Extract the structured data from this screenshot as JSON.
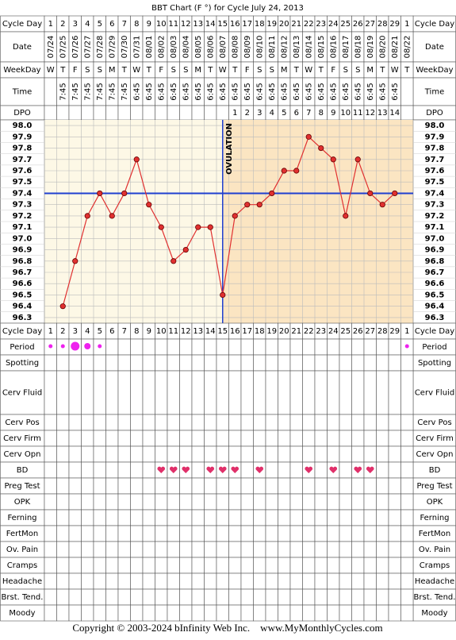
{
  "title": "BBT Chart (F °) for Cycle July 24, 2013",
  "labels": {
    "cycle_day": "Cycle Day",
    "date": "Date",
    "weekday": "WeekDay",
    "time": "Time",
    "dpo": "DPO"
  },
  "cycle_days": [
    "1",
    "2",
    "3",
    "4",
    "5",
    "6",
    "7",
    "8",
    "9",
    "10",
    "11",
    "12",
    "13",
    "14",
    "15",
    "16",
    "17",
    "18",
    "19",
    "20",
    "21",
    "22",
    "23",
    "24",
    "25",
    "26",
    "27",
    "28",
    "29",
    "1"
  ],
  "dates": [
    "07/24",
    "07/25",
    "07/26",
    "07/27",
    "07/28",
    "07/29",
    "07/30",
    "07/31",
    "08/01",
    "08/02",
    "08/03",
    "08/04",
    "08/05",
    "08/06",
    "08/07",
    "08/08",
    "08/09",
    "08/10",
    "08/11",
    "08/12",
    "08/13",
    "08/14",
    "08/15",
    "08/16",
    "08/17",
    "08/18",
    "08/19",
    "08/20",
    "08/21",
    "08/22"
  ],
  "weekdays": [
    "W",
    "T",
    "F",
    "S",
    "S",
    "M",
    "T",
    "W",
    "T",
    "F",
    "S",
    "S",
    "M",
    "T",
    "W",
    "T",
    "F",
    "S",
    "S",
    "M",
    "T",
    "W",
    "T",
    "F",
    "S",
    "S",
    "M",
    "T",
    "W",
    "T"
  ],
  "times": [
    null,
    "7:45",
    "7:45",
    "7:45",
    "7:45",
    "7:45",
    "7:45",
    "6:45",
    "6:45",
    "6:45",
    "6:45",
    "6:45",
    "6:45",
    "6:45",
    "6:45",
    "6:45",
    "6:45",
    "6:45",
    "6:45",
    "6:45",
    "6:45",
    "6:45",
    "6:45",
    "6:45",
    "6:45",
    "6:45",
    "6:45",
    "6:45",
    "6:45",
    null
  ],
  "dpo": [
    null,
    null,
    null,
    null,
    null,
    null,
    null,
    null,
    null,
    null,
    null,
    null,
    null,
    null,
    null,
    "1",
    "2",
    "3",
    "4",
    "5",
    "6",
    "7",
    "8",
    "9",
    "10",
    "11",
    "12",
    "13",
    "14",
    null
  ],
  "chart_data": {
    "type": "line",
    "values": [
      null,
      96.4,
      96.8,
      97.2,
      97.4,
      97.2,
      97.4,
      97.7,
      97.3,
      97.1,
      96.8,
      96.9,
      97.1,
      97.1,
      96.5,
      97.2,
      97.3,
      97.3,
      97.4,
      97.6,
      97.6,
      97.9,
      97.8,
      97.7,
      97.2,
      97.7,
      97.4,
      97.3,
      97.4,
      null
    ],
    "color": "#e03030",
    "ylim": [
      96.25,
      98.05
    ],
    "yticks": [
      {
        "value": 98.0,
        "label": "98.0"
      },
      97.9,
      97.8,
      97.7,
      97.6,
      97.5,
      97.4,
      97.3,
      97.2,
      97.1,
      {
        "value": 97.0,
        "label": "97.0"
      },
      96.9,
      96.8,
      96.7,
      96.6,
      96.5,
      96.4,
      96.3
    ],
    "coverline": 97.4,
    "ovulation_date": "08/07",
    "ovulation_label": "OVULATION",
    "grid": true
  },
  "bottom_rows": [
    "Period",
    "Spotting",
    "Cerv Fluid",
    "Cerv Pos",
    "Cerv Firm",
    "Cerv Opn",
    "BD",
    "Preg Test",
    "OPK",
    "Ferning",
    "FertMon",
    "Ov. Pain",
    "Cramps",
    "Headache",
    "Brst. Tend.",
    "Moody"
  ],
  "period": [
    1,
    1,
    3,
    2,
    1,
    null,
    null,
    null,
    null,
    null,
    null,
    null,
    null,
    null,
    null,
    null,
    null,
    null,
    null,
    null,
    null,
    null,
    null,
    null,
    null,
    null,
    null,
    null,
    null,
    1
  ],
  "bd": [
    false,
    false,
    false,
    false,
    false,
    false,
    false,
    false,
    false,
    true,
    true,
    true,
    false,
    true,
    true,
    true,
    false,
    true,
    false,
    false,
    false,
    true,
    false,
    true,
    false,
    true,
    true,
    false,
    false,
    false
  ],
  "footer": "Copyright © 2003-2024 bInfinity Web Inc.    www.MyMonthlyCycles.com"
}
